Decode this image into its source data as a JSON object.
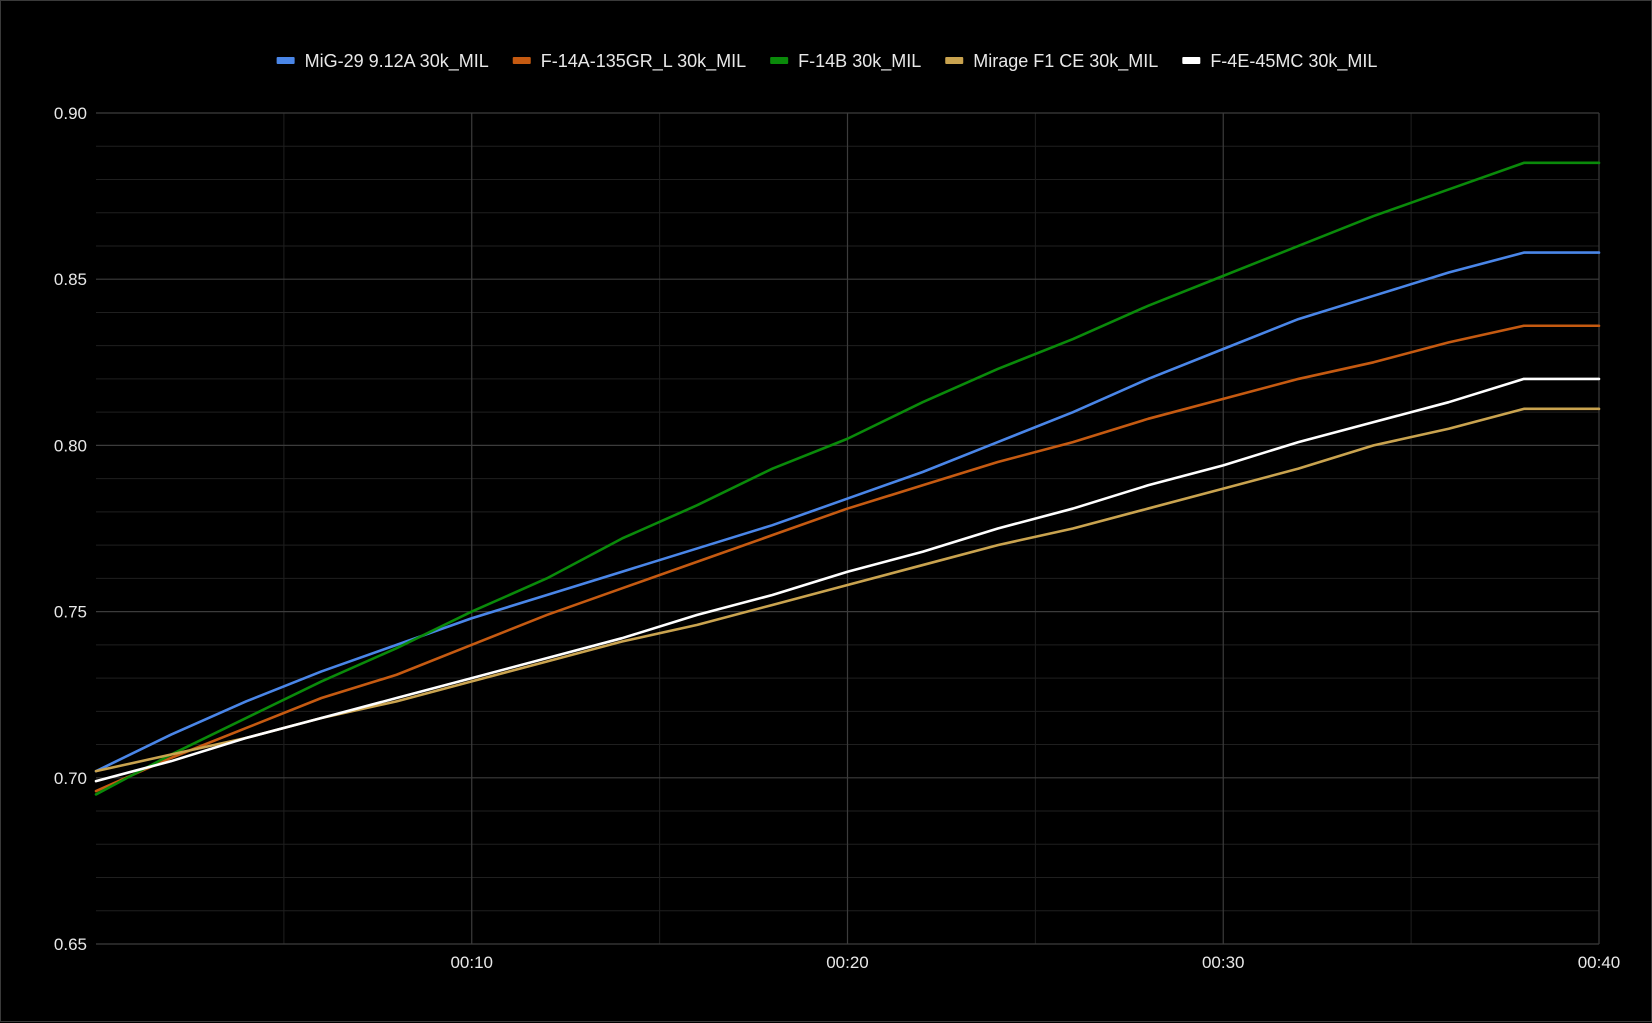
{
  "chart_data": {
    "type": "line",
    "title": "",
    "xlabel": "",
    "ylabel": "",
    "x_unit": "seconds",
    "xlim": [
      0,
      40
    ],
    "ylim": [
      0.65,
      0.9
    ],
    "x_ticks": [
      {
        "value": 10,
        "label": "00:10"
      },
      {
        "value": 20,
        "label": "00:20"
      },
      {
        "value": 30,
        "label": "00:30"
      },
      {
        "value": 40,
        "label": "00:40"
      }
    ],
    "x_minor_ticks": [
      5,
      15,
      25,
      35
    ],
    "y_ticks": [
      {
        "value": 0.65,
        "label": "0.65"
      },
      {
        "value": 0.7,
        "label": "0.70"
      },
      {
        "value": 0.75,
        "label": "0.75"
      },
      {
        "value": 0.8,
        "label": "0.80"
      },
      {
        "value": 0.85,
        "label": "0.85"
      },
      {
        "value": 0.9,
        "label": "0.90"
      }
    ],
    "y_minor_step": 0.01,
    "grid": true,
    "legend_position": "top",
    "x": [
      0,
      2,
      4,
      6,
      8,
      10,
      12,
      14,
      16,
      18,
      20,
      22,
      24,
      26,
      28,
      30,
      32,
      34,
      36,
      38,
      40
    ],
    "series": [
      {
        "name": "MiG-29 9.12A 30k_MIL",
        "color": "#4a86e8",
        "values": [
          0.702,
          0.713,
          0.723,
          0.732,
          0.74,
          0.748,
          0.755,
          0.762,
          0.769,
          0.776,
          0.784,
          0.792,
          0.801,
          0.81,
          0.82,
          0.829,
          0.838,
          0.845,
          0.852,
          0.858,
          0.858
        ]
      },
      {
        "name": "F-14A-135GR_L 30k_MIL",
        "color": "#c55a11",
        "values": [
          0.696,
          0.706,
          0.715,
          0.724,
          0.731,
          0.74,
          0.749,
          0.757,
          0.765,
          0.773,
          0.781,
          0.788,
          0.795,
          0.801,
          0.808,
          0.814,
          0.82,
          0.825,
          0.831,
          0.836,
          0.836
        ]
      },
      {
        "name": "F-14B 30k_MIL",
        "color": "#0a8a0a",
        "values": [
          0.695,
          0.707,
          0.718,
          0.729,
          0.739,
          0.75,
          0.76,
          0.772,
          0.782,
          0.793,
          0.802,
          0.813,
          0.823,
          0.832,
          0.842,
          0.851,
          0.86,
          0.869,
          0.877,
          0.885,
          0.885
        ]
      },
      {
        "name": "Mirage F1 CE 30k_MIL",
        "color": "#c9a34f",
        "values": [
          0.702,
          0.707,
          0.712,
          0.718,
          0.723,
          0.729,
          0.735,
          0.741,
          0.746,
          0.752,
          0.758,
          0.764,
          0.77,
          0.775,
          0.781,
          0.787,
          0.793,
          0.8,
          0.805,
          0.811,
          0.811
        ]
      },
      {
        "name": "F-4E-45MC 30k_MIL",
        "color": "#ffffff",
        "values": [
          0.699,
          0.705,
          0.712,
          0.718,
          0.724,
          0.73,
          0.736,
          0.742,
          0.749,
          0.755,
          0.762,
          0.768,
          0.775,
          0.781,
          0.788,
          0.794,
          0.801,
          0.807,
          0.813,
          0.82,
          0.82
        ]
      }
    ]
  }
}
